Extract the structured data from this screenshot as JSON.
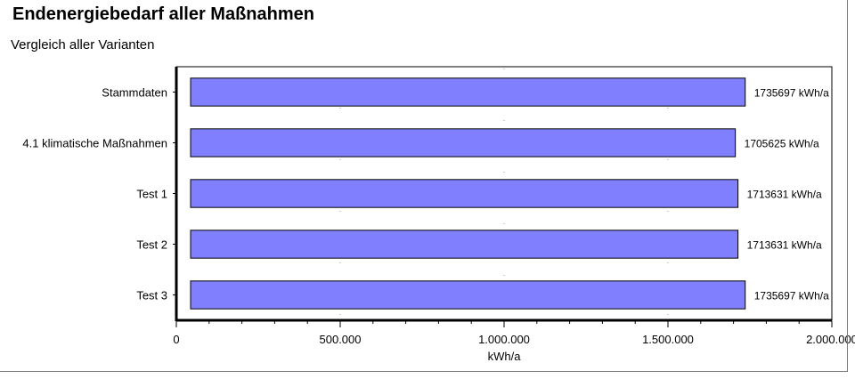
{
  "chart_data": {
    "type": "bar",
    "orientation": "horizontal",
    "title": "Endenergiebedarf aller Maßnahmen",
    "subtitle": "Vergleich aller Varianten",
    "categories": [
      "Stammdaten",
      "4.1 klimatische Maßnahmen",
      "Test 1",
      "Test 2",
      "Test 3"
    ],
    "values": [
      1735697,
      1705625,
      1713631,
      1713631,
      1735697
    ],
    "data_labels": [
      "1735697 kWh/a",
      "1705625 kWh/a",
      "1713631 kWh/a",
      "1713631 kWh/a",
      "1735697 kWh/a"
    ],
    "xlabel": "kWh/a",
    "xlim": [
      0,
      2000000
    ],
    "x_ticks": [
      0,
      500000,
      1000000,
      1500000,
      2000000
    ],
    "x_tick_labels": [
      "0",
      "500.000",
      "1.000.000",
      "1.500.000",
      "2.000.000"
    ],
    "bar_color": "#8080ff",
    "bar_border_color": "#000000",
    "grid": "dotted"
  }
}
